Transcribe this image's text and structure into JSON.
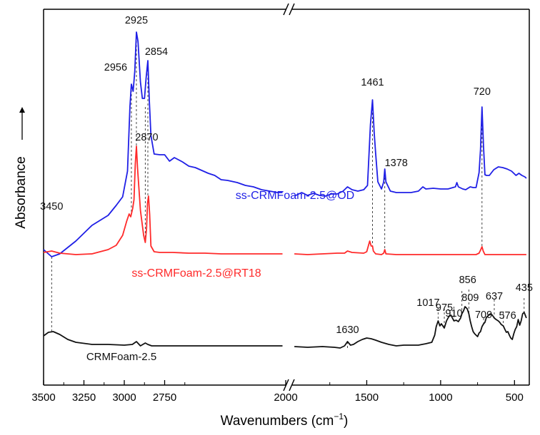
{
  "chart_data": {
    "type": "line",
    "xlabel": "Wavenumbers (cm",
    "xlabel_sup": "−1",
    "xlabel_tail": ")",
    "ylabel": "Absorbance",
    "x_reversed": true,
    "axis_break": {
      "from": 2000,
      "to": 2000
    },
    "xticks": [
      3500,
      3250,
      3000,
      2750,
      2000,
      1500,
      1000,
      500
    ],
    "xticklabels": [
      "3500",
      "3250",
      "3000",
      "2750",
      "2000",
      "1500",
      "1000",
      "500"
    ],
    "y_unit": "a.u. (offset traces)",
    "series": [
      {
        "name": "ss-CRMFoam-2.5@OD",
        "color": "#1f1fe6",
        "points": [
          [
            3500,
            350
          ],
          [
            3450,
            360
          ],
          [
            3400,
            356
          ],
          [
            3300,
            338
          ],
          [
            3200,
            316
          ],
          [
            3100,
            302
          ],
          [
            3050,
            288
          ],
          [
            3010,
            276
          ],
          [
            2980,
            240
          ],
          [
            2965,
            150
          ],
          [
            2956,
            118
          ],
          [
            2945,
            128
          ],
          [
            2935,
            100
          ],
          [
            2925,
            45
          ],
          [
            2915,
            58
          ],
          [
            2900,
            115
          ],
          [
            2888,
            138
          ],
          [
            2875,
            138
          ],
          [
            2865,
            110
          ],
          [
            2854,
            85
          ],
          [
            2845,
            140
          ],
          [
            2835,
            190
          ],
          [
            2815,
            216
          ],
          [
            2780,
            217
          ],
          [
            2750,
            217
          ],
          [
            2720,
            226
          ],
          [
            2690,
            221
          ],
          [
            2640,
            227
          ],
          [
            2600,
            233
          ],
          [
            2560,
            235
          ],
          [
            2520,
            239
          ],
          [
            2480,
            243
          ],
          [
            2440,
            246
          ],
          [
            2400,
            252
          ],
          [
            2360,
            253
          ],
          [
            2300,
            256
          ],
          [
            2250,
            260
          ],
          [
            2200,
            262
          ],
          [
            2150,
            266
          ],
          [
            2100,
            268
          ],
          [
            2050,
            270
          ],
          [
            2020,
            270
          ],
          [
            1990,
            275
          ],
          [
            1940,
            270
          ],
          [
            1900,
            274
          ],
          [
            1860,
            271
          ],
          [
            1820,
            274
          ],
          [
            1780,
            275
          ],
          [
            1740,
            272
          ],
          [
            1700,
            272
          ],
          [
            1660,
            268
          ],
          [
            1630,
            262
          ],
          [
            1600,
            266
          ],
          [
            1560,
            268
          ],
          [
            1520,
            266
          ],
          [
            1495,
            260
          ],
          [
            1475,
            175
          ],
          [
            1461,
            140
          ],
          [
            1450,
            185
          ],
          [
            1440,
            215
          ],
          [
            1425,
            255
          ],
          [
            1400,
            265
          ],
          [
            1385,
            255
          ],
          [
            1378,
            237
          ],
          [
            1370,
            255
          ],
          [
            1340,
            268
          ],
          [
            1300,
            270
          ],
          [
            1250,
            270
          ],
          [
            1200,
            270
          ],
          [
            1150,
            268
          ],
          [
            1120,
            262
          ],
          [
            1100,
            265
          ],
          [
            1050,
            264
          ],
          [
            1000,
            265
          ],
          [
            950,
            265
          ],
          [
            900,
            262
          ],
          [
            890,
            256
          ],
          [
            880,
            262
          ],
          [
            850,
            265
          ],
          [
            830,
            266
          ],
          [
            800,
            262
          ],
          [
            780,
            263
          ],
          [
            760,
            263
          ],
          [
            740,
            242
          ],
          [
            730,
            210
          ],
          [
            720,
            150
          ],
          [
            710,
            205
          ],
          [
            700,
            245
          ],
          [
            690,
            246
          ],
          [
            670,
            246
          ],
          [
            640,
            238
          ],
          [
            610,
            234
          ],
          [
            580,
            235
          ],
          [
            550,
            237
          ],
          [
            520,
            240
          ],
          [
            490,
            246
          ],
          [
            470,
            243
          ],
          [
            450,
            246
          ],
          [
            430,
            248
          ],
          [
            420,
            250
          ]
        ]
      },
      {
        "name": "ss-CRMFoam-2.5@RT18",
        "color": "#ff2a2a",
        "points": [
          [
            3500,
            354
          ],
          [
            3450,
            352
          ],
          [
            3400,
            355
          ],
          [
            3300,
            357
          ],
          [
            3200,
            356
          ],
          [
            3100,
            350
          ],
          [
            3050,
            344
          ],
          [
            3010,
            330
          ],
          [
            2985,
            310
          ],
          [
            2970,
            300
          ],
          [
            2960,
            304
          ],
          [
            2948,
            292
          ],
          [
            2940,
            280
          ],
          [
            2932,
            230
          ],
          [
            2925,
            205
          ],
          [
            2918,
            235
          ],
          [
            2900,
            295
          ],
          [
            2880,
            330
          ],
          [
            2870,
            340
          ],
          [
            2862,
            320
          ],
          [
            2856,
            285
          ],
          [
            2850,
            275
          ],
          [
            2843,
            300
          ],
          [
            2835,
            345
          ],
          [
            2815,
            353
          ],
          [
            2780,
            354
          ],
          [
            2700,
            354
          ],
          [
            2600,
            355
          ],
          [
            2500,
            355
          ],
          [
            2400,
            356
          ],
          [
            2300,
            356
          ],
          [
            2200,
            356
          ],
          [
            2100,
            356
          ],
          [
            2020,
            356
          ],
          [
            1990,
            356
          ],
          [
            1900,
            357
          ],
          [
            1800,
            356
          ],
          [
            1700,
            355
          ],
          [
            1650,
            355
          ],
          [
            1630,
            352
          ],
          [
            1600,
            354
          ],
          [
            1520,
            355
          ],
          [
            1500,
            353
          ],
          [
            1480,
            338
          ],
          [
            1470,
            345
          ],
          [
            1461,
            345
          ],
          [
            1455,
            352
          ],
          [
            1440,
            356
          ],
          [
            1400,
            357
          ],
          [
            1385,
            355
          ],
          [
            1378,
            350
          ],
          [
            1370,
            356
          ],
          [
            1300,
            357
          ],
          [
            1200,
            357
          ],
          [
            1100,
            357
          ],
          [
            1000,
            357
          ],
          [
            900,
            357
          ],
          [
            800,
            357
          ],
          [
            760,
            357
          ],
          [
            740,
            355
          ],
          [
            728,
            350
          ],
          [
            720,
            346
          ],
          [
            712,
            352
          ],
          [
            700,
            357
          ],
          [
            600,
            357
          ],
          [
            500,
            357
          ],
          [
            420,
            357
          ]
        ]
      },
      {
        "name": "CRMFoam-2.5",
        "color": "#111111",
        "points": [
          [
            3500,
            471
          ],
          [
            3470,
            466
          ],
          [
            3440,
            465
          ],
          [
            3400,
            469
          ],
          [
            3350,
            476
          ],
          [
            3300,
            480
          ],
          [
            3200,
            483
          ],
          [
            3100,
            483
          ],
          [
            3000,
            484
          ],
          [
            2950,
            483
          ],
          [
            2925,
            479
          ],
          [
            2900,
            485
          ],
          [
            2870,
            481
          ],
          [
            2854,
            483
          ],
          [
            2830,
            485
          ],
          [
            2700,
            485
          ],
          [
            2600,
            485
          ],
          [
            2500,
            485
          ],
          [
            2400,
            485
          ],
          [
            2300,
            485
          ],
          [
            2200,
            485
          ],
          [
            2100,
            485
          ],
          [
            2020,
            485
          ],
          [
            1990,
            486
          ],
          [
            1900,
            487
          ],
          [
            1800,
            486
          ],
          [
            1720,
            487
          ],
          [
            1680,
            488
          ],
          [
            1650,
            485
          ],
          [
            1630,
            479
          ],
          [
            1610,
            484
          ],
          [
            1590,
            483
          ],
          [
            1560,
            479
          ],
          [
            1530,
            476
          ],
          [
            1500,
            474
          ],
          [
            1470,
            475
          ],
          [
            1440,
            477
          ],
          [
            1400,
            480
          ],
          [
            1350,
            483
          ],
          [
            1300,
            485
          ],
          [
            1250,
            484
          ],
          [
            1200,
            484
          ],
          [
            1150,
            484
          ],
          [
            1100,
            482
          ],
          [
            1060,
            480
          ],
          [
            1040,
            470
          ],
          [
            1030,
            458
          ],
          [
            1017,
            450
          ],
          [
            1005,
            457
          ],
          [
            995,
            454
          ],
          [
            975,
            460
          ],
          [
            960,
            450
          ],
          [
            945,
            444
          ],
          [
            930,
            442
          ],
          [
            920,
            446
          ],
          [
            910,
            450
          ],
          [
            895,
            449
          ],
          [
            880,
            451
          ],
          [
            865,
            446
          ],
          [
            856,
            440
          ],
          [
            845,
            436
          ],
          [
            835,
            430
          ],
          [
            820,
            433
          ],
          [
            809,
            440
          ],
          [
            800,
            450
          ],
          [
            790,
            458
          ],
          [
            780,
            465
          ],
          [
            770,
            468
          ],
          [
            760,
            470
          ],
          [
            750,
            472
          ],
          [
            740,
            467
          ],
          [
            730,
            465
          ],
          [
            720,
            458
          ],
          [
            709,
            454
          ],
          [
            700,
            452
          ],
          [
            690,
            445
          ],
          [
            680,
            443
          ],
          [
            670,
            441
          ],
          [
            660,
            440
          ],
          [
            650,
            442
          ],
          [
            637,
            446
          ],
          [
            625,
            448
          ],
          [
            610,
            450
          ],
          [
            600,
            452
          ],
          [
            590,
            455
          ],
          [
            576,
            457
          ],
          [
            565,
            462
          ],
          [
            555,
            466
          ],
          [
            545,
            465
          ],
          [
            535,
            470
          ],
          [
            525,
            474
          ],
          [
            515,
            476
          ],
          [
            505,
            468
          ],
          [
            495,
            462
          ],
          [
            485,
            458
          ],
          [
            475,
            448
          ],
          [
            465,
            456
          ],
          [
            455,
            450
          ],
          [
            445,
            440
          ],
          [
            435,
            438
          ],
          [
            425,
            443
          ],
          [
            420,
            446
          ]
        ]
      }
    ],
    "peak_labels": [
      {
        "text": "2956",
        "x": 2956,
        "y": 118,
        "pos": "left"
      },
      {
        "text": "2925",
        "x": 2925,
        "y": 45,
        "pos": "top"
      },
      {
        "text": "2854",
        "x": 2854,
        "y": 85,
        "pos": "top-right"
      },
      {
        "text": "2870",
        "x": 2870,
        "y": 205,
        "pos": "top"
      },
      {
        "text": "1461",
        "x": 1461,
        "y": 140,
        "pos": "top"
      },
      {
        "text": "1378",
        "x": 1378,
        "y": 237,
        "pos": "top-right"
      },
      {
        "text": "720",
        "x": 720,
        "y": 150,
        "pos": "top"
      },
      {
        "text": "3450",
        "x": 3450,
        "y": 300,
        "pos": "top"
      },
      {
        "text": "1630",
        "x": 1630,
        "y": 479,
        "pos": "top"
      },
      {
        "text": "1017",
        "x": 1017,
        "y": 450,
        "pos": "top-left"
      },
      {
        "text": "975",
        "x": 975,
        "y": 460,
        "pos": "top"
      },
      {
        "text": "910",
        "x": 910,
        "y": 450,
        "pos": "top"
      },
      {
        "text": "856",
        "x": 856,
        "y": 440,
        "pos": "top"
      },
      {
        "text": "809",
        "x": 809,
        "y": 440,
        "pos": "top"
      },
      {
        "text": "709",
        "x": 709,
        "y": 454,
        "pos": "top"
      },
      {
        "text": "637",
        "x": 637,
        "y": 446,
        "pos": "top"
      },
      {
        "text": "576",
        "x": 576,
        "y": 457,
        "pos": "top"
      },
      {
        "text": "435",
        "x": 435,
        "y": 438,
        "pos": "top"
      }
    ],
    "reference_lines": [
      3450,
      2956,
      2925,
      2870,
      2854,
      1461,
      1378,
      720,
      1630,
      1017,
      975,
      910,
      856,
      809,
      709,
      637,
      576,
      435
    ],
    "legend_placement": "inline labels near traces",
    "grid": false
  },
  "labels": {
    "od": "ss-CRMFoam-2.5@OD",
    "rt18": "ss-CRMFoam-2.5@RT18",
    "crm": "CRMFoam-2.5"
  },
  "ylabel_arrow": "→"
}
